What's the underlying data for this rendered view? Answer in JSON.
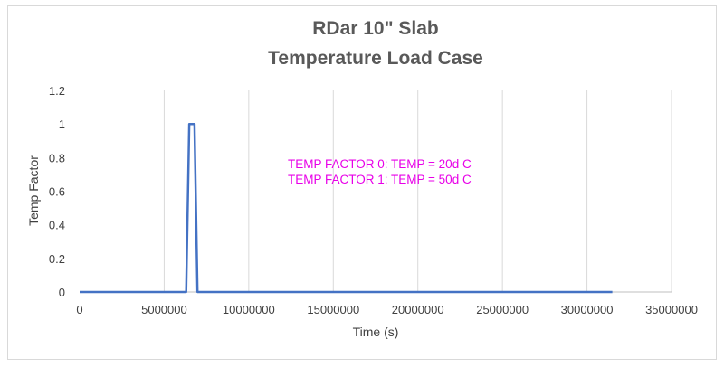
{
  "chart_data": {
    "type": "line",
    "title_lines": [
      "RDar 10\" Slab",
      "Temperature Load Case"
    ],
    "xlabel": "Time (s)",
    "ylabel": "Temp Factor",
    "xlim": [
      0,
      35000000
    ],
    "ylim": [
      0,
      1.2
    ],
    "x_ticks": [
      0,
      5000000,
      10000000,
      15000000,
      20000000,
      25000000,
      30000000,
      35000000
    ],
    "x_tick_labels": [
      "0",
      "5000000",
      "10000000",
      "15000000",
      "20000000",
      "25000000",
      "30000000",
      "35000000"
    ],
    "y_ticks": [
      0,
      0.2,
      0.4,
      0.6,
      0.8,
      1,
      1.2
    ],
    "y_tick_labels": [
      "0",
      "0.2",
      "0.4",
      "0.6",
      "0.8",
      "1",
      "1.2"
    ],
    "grid": "vertical",
    "series": [
      {
        "color": "#4472c4",
        "x": [
          0,
          6300000,
          6480000,
          6790000,
          6970000,
          31500000
        ],
        "y": [
          0,
          0,
          1,
          1,
          0,
          0
        ]
      }
    ],
    "annotations": [
      "TEMP FACTOR 0:  TEMP = 20d C",
      "TEMP FACTOR 1:  TEMP = 50d C"
    ]
  }
}
